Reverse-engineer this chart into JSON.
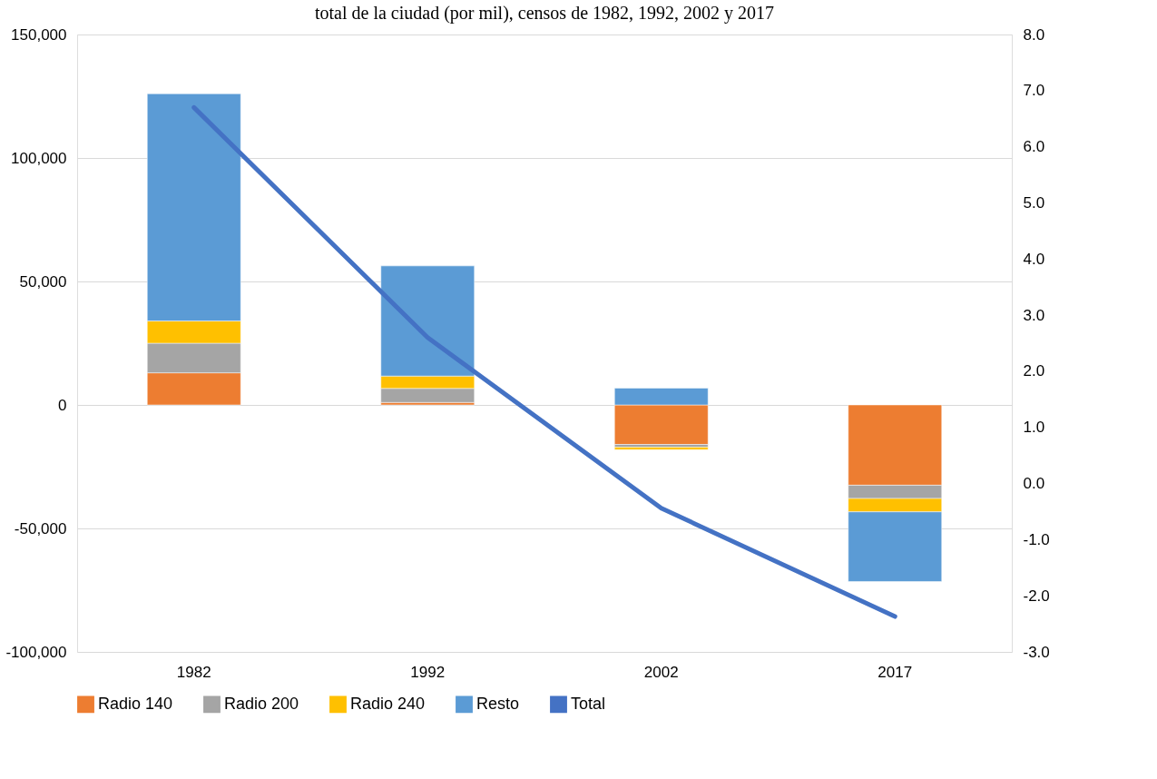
{
  "chart_data": {
    "type": "bar",
    "title": "total de la ciudad (por mil), censos de 1982, 1992, 2002 y 2017",
    "categories": [
      "1982",
      "1992",
      "2002",
      "2017"
    ],
    "stacked": true,
    "series": [
      {
        "name": "Radio 140",
        "color": "#ed7d31",
        "values": [
          13000,
          1000,
          -16000,
          -32500
        ]
      },
      {
        "name": "Radio 200",
        "color": "#a5a5a5",
        "values": [
          12000,
          5700,
          -1100,
          -5400
        ]
      },
      {
        "name": "Radio 240",
        "color": "#ffc000",
        "values": [
          9000,
          5000,
          -1000,
          -5400
        ]
      },
      {
        "name": "Resto",
        "color": "#5b9bd5",
        "values": [
          92000,
          44600,
          6800,
          -28200
        ]
      },
      {
        "name": "Total",
        "type": "line",
        "axis": "y2",
        "color": "#4472c4",
        "values": [
          6.7,
          2.6,
          -0.44,
          -2.37
        ]
      }
    ],
    "ylim": [
      -100000,
      150000
    ],
    "yticks": [
      {
        "value": -100000,
        "label": "-100,000"
      },
      {
        "value": -50000,
        "label": "-50,000"
      },
      {
        "value": 0,
        "label": "0"
      },
      {
        "value": 50000,
        "label": "50,000"
      },
      {
        "value": 100000,
        "label": "100,000"
      },
      {
        "value": 150000,
        "label": "150,000"
      }
    ],
    "y2lim": [
      -3,
      8
    ],
    "y2ticks": [
      {
        "value": -3,
        "label": "-3.0"
      },
      {
        "value": -2,
        "label": "-2.0"
      },
      {
        "value": -1,
        "label": "-1.0"
      },
      {
        "value": 0,
        "label": "0.0"
      },
      {
        "value": 1,
        "label": "1.0"
      },
      {
        "value": 2,
        "label": "2.0"
      },
      {
        "value": 3,
        "label": "3.0"
      },
      {
        "value": 4,
        "label": "4.0"
      },
      {
        "value": 5,
        "label": "5.0"
      },
      {
        "value": 6,
        "label": "6.0"
      },
      {
        "value": 7,
        "label": "7.0"
      },
      {
        "value": 8,
        "label": "8.0"
      }
    ],
    "grid": true,
    "legend": "bottom"
  }
}
